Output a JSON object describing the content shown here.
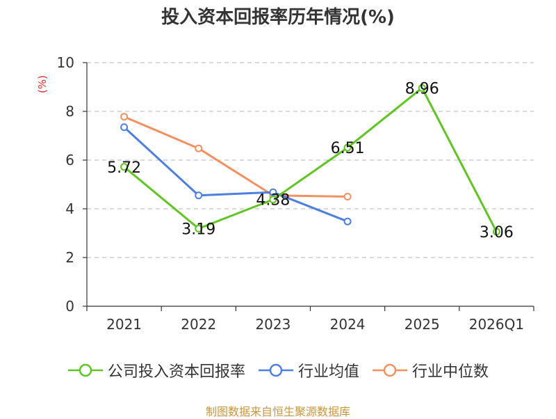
{
  "title": "投入资本回报率历年情况(%)",
  "unit_label": "(%)",
  "source": "制图数据来自恒生聚源数据库",
  "chart_data": {
    "type": "line",
    "title": "投入资本回报率历年情况(%)",
    "ylabel": "(%)",
    "categories": [
      "2021",
      "2022",
      "2023",
      "2024",
      "2025",
      "2026Q1"
    ],
    "ylim": [
      0,
      10
    ],
    "yticks": [
      0,
      2,
      4,
      6,
      8,
      10
    ],
    "grid": true,
    "legend_position": "bottom",
    "series": [
      {
        "name": "公司投入资本回报率",
        "color": "#5ec522",
        "labels": true,
        "values": [
          5.72,
          3.19,
          4.38,
          6.51,
          8.96,
          3.06
        ]
      },
      {
        "name": "行业均值",
        "color": "#4d7fe0",
        "labels": false,
        "values": [
          7.35,
          4.55,
          4.68,
          3.48,
          null,
          null
        ]
      },
      {
        "name": "行业中位数",
        "color": "#f49060",
        "labels": false,
        "values": [
          7.78,
          6.48,
          4.55,
          4.5,
          null,
          null
        ]
      }
    ]
  }
}
